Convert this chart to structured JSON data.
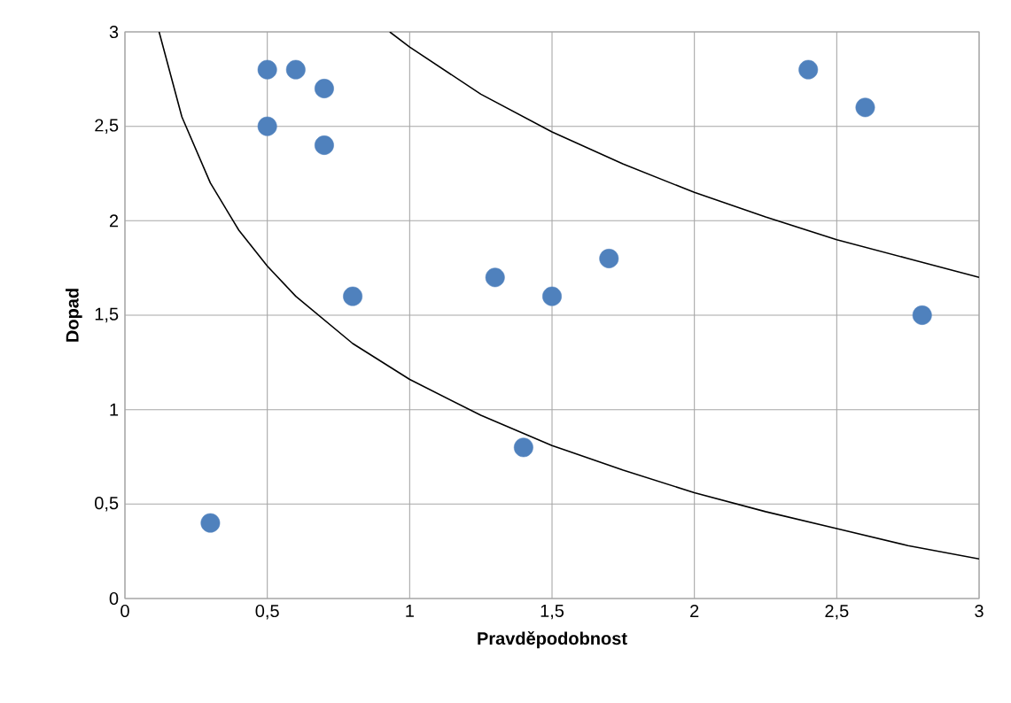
{
  "chart_data": {
    "type": "scatter",
    "xlabel": "Pravděpodobnost",
    "ylabel": "Dopad",
    "xlim": [
      0,
      3
    ],
    "ylim": [
      0,
      3
    ],
    "xticks": [
      0,
      {
        "value": 0.5,
        "label": "0,5"
      },
      1,
      {
        "value": 1.5,
        "label": "1,5"
      },
      2,
      {
        "value": 2.5,
        "label": "2,5"
      },
      3
    ],
    "yticks": [
      0,
      {
        "value": 0.5,
        "label": "0,5"
      },
      1,
      {
        "value": 1.5,
        "label": "1,5"
      },
      2,
      {
        "value": 2.5,
        "label": "2,5"
      },
      3
    ],
    "grid": true,
    "series": [
      {
        "type": "line",
        "color": "#000000",
        "line_style": "solid",
        "marker": "none",
        "x": [
          0.12,
          0.2,
          0.3,
          0.4,
          0.5,
          0.6,
          0.8,
          1,
          1.25,
          1.5,
          1.75,
          2,
          2.25,
          2.5,
          2.75,
          3
        ],
        "values": [
          3.0,
          2.55,
          2.2,
          1.95,
          1.76,
          1.6,
          1.35,
          1.16,
          0.97,
          0.81,
          0.68,
          0.56,
          0.46,
          0.37,
          0.28,
          0.21
        ]
      },
      {
        "type": "line",
        "color": "#000000",
        "line_style": "solid",
        "marker": "none",
        "x": [
          0.93,
          1,
          1.25,
          1.5,
          1.75,
          2,
          2.25,
          2.5,
          2.75,
          3
        ],
        "values": [
          3.0,
          2.92,
          2.67,
          2.47,
          2.3,
          2.15,
          2.02,
          1.9,
          1.8,
          1.7
        ]
      },
      {
        "color": "#4f81bd",
        "marker": "circle",
        "x": [
          0.3,
          0.5,
          0.6,
          0.7,
          0.5,
          0.7,
          0.8,
          1.3,
          1.5,
          1.7,
          1.4,
          2.4,
          2.6,
          2.8
        ],
        "values": [
          0.4,
          2.8,
          2.8,
          2.7,
          2.5,
          2.4,
          1.6,
          1.7,
          1.6,
          1.8,
          0.8,
          2.8,
          2.6,
          1.5
        ]
      }
    ]
  }
}
